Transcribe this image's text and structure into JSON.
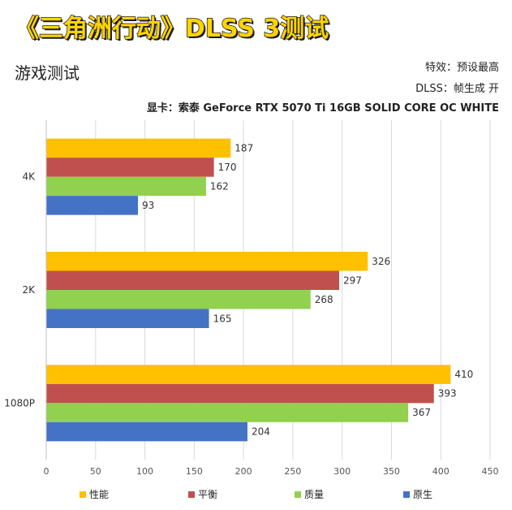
{
  "title": "《三角洲行动》DLSS 3测试",
  "subtitle": "游戏测试",
  "settings": {
    "effect": "特效：预设最高",
    "dlss": "DLSS：帧生成 开",
    "gpu": "显卡：索泰 GeForce RTX 5070 Ti 16GB SOLID CORE OC WHITE"
  },
  "colors": {
    "title_fill": "#ffd400",
    "性能": "#ffc000",
    "平衡": "#c0504d",
    "质量": "#92d050",
    "原生": "#4472c4",
    "grid": "#d9d9d9"
  },
  "chart_data": {
    "type": "bar",
    "orientation": "horizontal",
    "categories": [
      "4K",
      "2K",
      "1080P"
    ],
    "series": [
      {
        "name": "性能",
        "values": [
          187,
          326,
          410
        ]
      },
      {
        "name": "平衡",
        "values": [
          170,
          297,
          393
        ]
      },
      {
        "name": "质量",
        "values": [
          162,
          268,
          367
        ]
      },
      {
        "name": "原生",
        "values": [
          93,
          165,
          204
        ]
      }
    ],
    "xlim": [
      0,
      450
    ],
    "xticks": [
      "0",
      "50",
      "100",
      "150",
      "200",
      "250",
      "300",
      "350",
      "400",
      "450"
    ],
    "grid": true,
    "legend_position": "bottom"
  }
}
